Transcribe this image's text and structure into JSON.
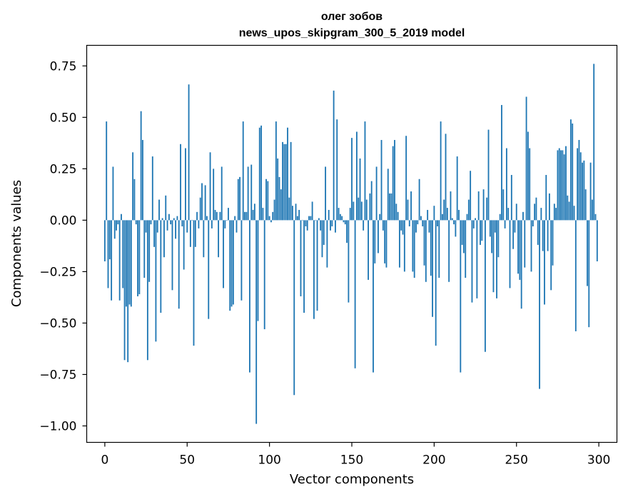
{
  "chart_data": {
    "type": "bar",
    "title_line1": "олег зобов",
    "title_line2": "news_upos_skipgram_300_5_2019 model",
    "xlabel": "Vector components",
    "ylabel": "Components values",
    "xlim": [
      -11,
      311
    ],
    "ylim": [
      -1.08,
      0.85
    ],
    "x_ticks": [
      0,
      50,
      100,
      150,
      200,
      250,
      300
    ],
    "x_tick_labels": [
      "0",
      "50",
      "100",
      "150",
      "200",
      "250",
      "300"
    ],
    "y_ticks": [
      0.75,
      0.5,
      0.25,
      0.0,
      -0.25,
      -0.5,
      -0.75,
      -1.0
    ],
    "y_tick_labels": [
      "0.75",
      "0.50",
      "0.25",
      "0.00",
      "−0.25",
      "−0.50",
      "−0.75",
      "−1.00"
    ],
    "bar_color": "#1f77b4",
    "grid": false,
    "x": [
      0,
      1,
      2,
      3,
      4,
      5,
      6,
      7,
      8,
      9,
      10,
      11,
      12,
      13,
      14,
      15,
      16,
      17,
      18,
      19,
      20,
      21,
      22,
      23,
      24,
      25,
      26,
      27,
      28,
      29,
      30,
      31,
      32,
      33,
      34,
      35,
      36,
      37,
      38,
      39,
      40,
      41,
      42,
      43,
      44,
      45,
      46,
      47,
      48,
      49,
      50,
      51,
      52,
      53,
      54,
      55,
      56,
      57,
      58,
      59,
      60,
      61,
      62,
      63,
      64,
      65,
      66,
      67,
      68,
      69,
      70,
      71,
      72,
      73,
      74,
      75,
      76,
      77,
      78,
      79,
      80,
      81,
      82,
      83,
      84,
      85,
      86,
      87,
      88,
      89,
      90,
      91,
      92,
      93,
      94,
      95,
      96,
      97,
      98,
      99,
      100,
      101,
      102,
      103,
      104,
      105,
      106,
      107,
      108,
      109,
      110,
      111,
      112,
      113,
      114,
      115,
      116,
      117,
      118,
      119,
      120,
      121,
      122,
      123,
      124,
      125,
      126,
      127,
      128,
      129,
      130,
      131,
      132,
      133,
      134,
      135,
      136,
      137,
      138,
      139,
      140,
      141,
      142,
      143,
      144,
      145,
      146,
      147,
      148,
      149,
      150,
      151,
      152,
      153,
      154,
      155,
      156,
      157,
      158,
      159,
      160,
      161,
      162,
      163,
      164,
      165,
      166,
      167,
      168,
      169,
      170,
      171,
      172,
      173,
      174,
      175,
      176,
      177,
      178,
      179,
      180,
      181,
      182,
      183,
      184,
      185,
      186,
      187,
      188,
      189,
      190,
      191,
      192,
      193,
      194,
      195,
      196,
      197,
      198,
      199,
      200,
      201,
      202,
      203,
      204,
      205,
      206,
      207,
      208,
      209,
      210,
      211,
      212,
      213,
      214,
      215,
      216,
      217,
      218,
      219,
      220,
      221,
      222,
      223,
      224,
      225,
      226,
      227,
      228,
      229,
      230,
      231,
      232,
      233,
      234,
      235,
      236,
      237,
      238,
      239,
      240,
      241,
      242,
      243,
      244,
      245,
      246,
      247,
      248,
      249,
      250,
      251,
      252,
      253,
      254,
      255,
      256,
      257,
      258,
      259,
      260,
      261,
      262,
      263,
      264,
      265,
      266,
      267,
      268,
      269,
      270,
      271,
      272,
      273,
      274,
      275,
      276,
      277,
      278,
      279,
      280,
      281,
      282,
      283,
      284,
      285,
      286,
      287,
      288,
      289,
      290,
      291,
      292,
      293,
      294,
      295,
      296,
      297,
      298,
      299
    ],
    "values": [
      -0.2,
      0.48,
      -0.33,
      -0.19,
      -0.39,
      0.26,
      -0.09,
      -0.05,
      -0.02,
      -0.39,
      0.03,
      -0.33,
      -0.68,
      -0.42,
      -0.69,
      -0.41,
      -0.42,
      0.33,
      0.2,
      -0.02,
      -0.37,
      -0.36,
      0.53,
      0.39,
      -0.28,
      -0.06,
      -0.68,
      -0.3,
      -0.02,
      0.31,
      -0.13,
      -0.59,
      -0.06,
      0.1,
      -0.45,
      0.01,
      -0.18,
      0.12,
      -0.05,
      0.03,
      -0.02,
      -0.34,
      0.01,
      -0.09,
      0.02,
      -0.43,
      0.37,
      -0.03,
      -0.24,
      0.35,
      -0.06,
      0.66,
      -0.13,
      0.0,
      -0.61,
      -0.13,
      0.04,
      -0.04,
      0.11,
      0.18,
      -0.18,
      0.17,
      0.02,
      -0.48,
      0.33,
      -0.04,
      0.25,
      0.05,
      0.04,
      -0.18,
      0.04,
      0.26,
      -0.33,
      -0.04,
      0.0,
      0.06,
      -0.44,
      -0.42,
      -0.41,
      0.02,
      -0.06,
      0.2,
      0.21,
      -0.39,
      0.48,
      0.04,
      0.04,
      0.26,
      -0.74,
      0.27,
      0.05,
      0.08,
      -0.99,
      -0.49,
      0.45,
      0.46,
      0.06,
      -0.53,
      0.2,
      0.19,
      0.02,
      -0.01,
      0.04,
      0.1,
      0.48,
      0.3,
      0.21,
      0.15,
      0.38,
      0.37,
      0.37,
      0.45,
      0.11,
      0.38,
      0.07,
      -0.85,
      0.08,
      0.02,
      0.05,
      -0.37,
      0.0,
      -0.45,
      -0.03,
      -0.05,
      0.02,
      0.02,
      0.09,
      -0.48,
      0.0,
      -0.44,
      0.01,
      -0.05,
      -0.18,
      -0.12,
      0.26,
      -0.23,
      0.05,
      -0.05,
      -0.03,
      0.63,
      -0.06,
      0.49,
      0.06,
      0.03,
      0.02,
      -0.01,
      -0.02,
      -0.11,
      -0.4,
      0.06,
      0.4,
      0.09,
      -0.72,
      0.43,
      0.11,
      0.3,
      0.09,
      -0.05,
      0.48,
      0.1,
      -0.29,
      0.13,
      0.19,
      -0.74,
      -0.21,
      0.26,
      -0.16,
      0.03,
      0.39,
      -0.05,
      -0.21,
      -0.23,
      0.25,
      0.13,
      0.13,
      0.36,
      0.39,
      0.08,
      0.04,
      -0.23,
      -0.05,
      -0.07,
      -0.25,
      0.41,
      0.1,
      -0.03,
      0.14,
      -0.25,
      -0.28,
      -0.06,
      -0.02,
      0.2,
      0.02,
      -0.03,
      -0.22,
      -0.3,
      0.05,
      -0.06,
      -0.27,
      -0.47,
      0.07,
      -0.61,
      -0.03,
      -0.28,
      0.48,
      0.03,
      0.1,
      0.42,
      0.06,
      -0.3,
      0.14,
      0.01,
      -0.02,
      -0.08,
      0.31,
      0.05,
      -0.74,
      -0.12,
      -0.16,
      -0.28,
      0.03,
      0.1,
      0.24,
      -0.4,
      -0.04,
      0.01,
      -0.38,
      0.14,
      -0.12,
      -0.1,
      0.15,
      -0.64,
      0.11,
      0.44,
      -0.08,
      -0.16,
      -0.35,
      -0.06,
      -0.38,
      -0.18,
      0.03,
      0.56,
      0.15,
      -0.04,
      0.35,
      0.06,
      -0.33,
      0.22,
      -0.14,
      -0.06,
      0.08,
      -0.26,
      -0.29,
      -0.43,
      0.04,
      -0.23,
      0.6,
      0.43,
      0.35,
      -0.25,
      -0.03,
      0.08,
      0.11,
      -0.12,
      -0.82,
      0.06,
      -0.15,
      -0.41,
      0.22,
      -0.15,
      0.13,
      -0.34,
      -0.22,
      0.08,
      0.06,
      0.34,
      0.35,
      0.34,
      0.34,
      0.32,
      0.36,
      0.12,
      0.09,
      0.49,
      0.47,
      0.07,
      -0.54,
      0.35,
      0.39,
      0.33,
      0.28,
      0.29,
      0.15,
      -0.32,
      -0.52,
      0.28,
      0.1,
      0.76,
      0.03,
      -0.2
    ]
  }
}
